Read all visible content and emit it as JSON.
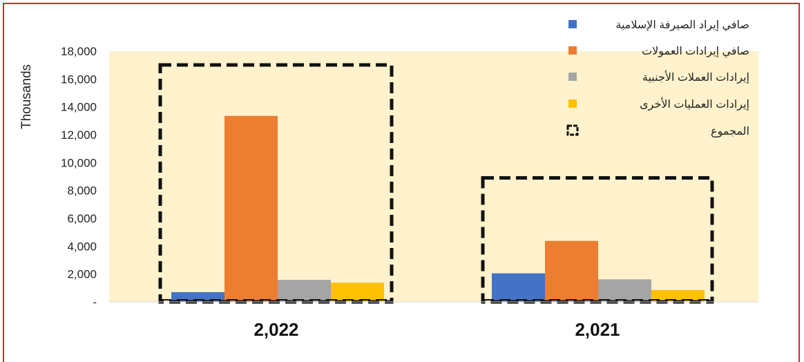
{
  "chart_data": {
    "type": "bar",
    "categories": [
      "2,022",
      "2,021"
    ],
    "series": [
      {
        "name": "صافي إيراد الصيرفة الإسلامية",
        "color": "#4472c4",
        "values": [
          700,
          2050
        ]
      },
      {
        "name": "صافي إيرادات العمولات",
        "color": "#ed7d31",
        "values": [
          13350,
          4380
        ]
      },
      {
        "name": "إيرادات العملات الأجنبية",
        "color": "#a5a5a5",
        "values": [
          1580,
          1620
        ]
      },
      {
        "name": "إيرادات العمليات الأخرى",
        "color": "#ffc000",
        "values": [
          1380,
          850
        ]
      }
    ],
    "total": {
      "name": "المجموع",
      "style": "dashed-box",
      "values": [
        17010,
        8900
      ]
    },
    "ylabel": "Thousands",
    "ylim": [
      0,
      18000
    ],
    "yticks": [
      {
        "value": 0,
        "label": "-"
      },
      {
        "value": 2000,
        "label": "2,000"
      },
      {
        "value": 4000,
        "label": "4,000"
      },
      {
        "value": 6000,
        "label": "6,000"
      },
      {
        "value": 8000,
        "label": "8,000"
      },
      {
        "value": 10000,
        "label": "10,000"
      },
      {
        "value": 12000,
        "label": "12,000"
      },
      {
        "value": 14000,
        "label": "14,000"
      },
      {
        "value": 16000,
        "label": "16,000"
      },
      {
        "value": 18000,
        "label": "18,000"
      }
    ],
    "plot_background": "#fff2cc",
    "grid": false,
    "legend_position": "top-right"
  }
}
